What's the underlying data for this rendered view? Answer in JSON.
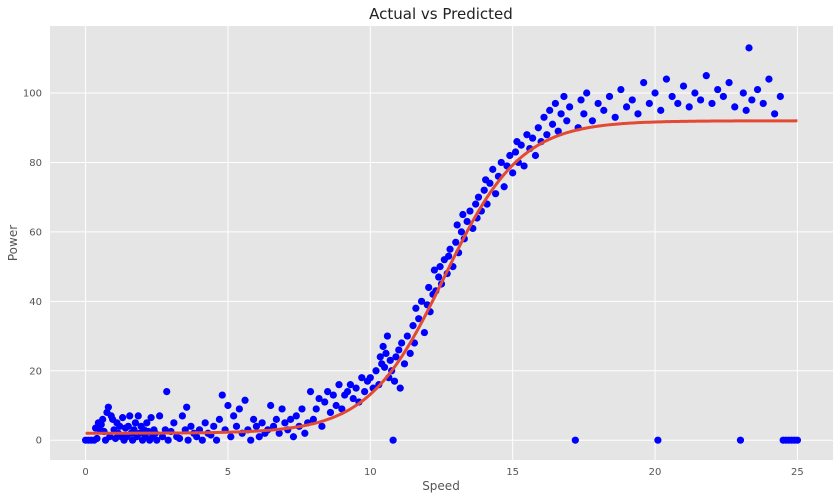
{
  "chart_data": {
    "type": "scatter",
    "title": "Actual vs Predicted",
    "xlabel": "Speed",
    "ylabel": "Power",
    "xlim": [
      -1.25,
      26.25
    ],
    "ylim": [
      -5.7,
      119.3
    ],
    "x_ticks": [
      0,
      5,
      10,
      15,
      20,
      25
    ],
    "y_ticks": [
      0,
      20,
      40,
      60,
      80,
      100
    ],
    "grid": true,
    "colors": {
      "background": "#e5e5e5",
      "grid": "#ffffff",
      "points": "#0000ff",
      "fit_line": "#e24a33"
    },
    "series": [
      {
        "kind": "scatter",
        "points": [
          [
            0.0,
            0
          ],
          [
            0.1,
            0
          ],
          [
            0.2,
            0
          ],
          [
            0.3,
            0
          ],
          [
            0.35,
            3.5
          ],
          [
            0.4,
            0.5
          ],
          [
            0.45,
            5
          ],
          [
            0.5,
            3
          ],
          [
            0.55,
            4.5
          ],
          [
            0.6,
            6
          ],
          [
            0.65,
            2.5
          ],
          [
            0.7,
            0
          ],
          [
            0.75,
            8
          ],
          [
            0.8,
            9.5
          ],
          [
            0.85,
            1
          ],
          [
            0.9,
            7
          ],
          [
            0.95,
            6
          ],
          [
            1.0,
            3
          ],
          [
            1.05,
            0.5
          ],
          [
            1.1,
            5
          ],
          [
            1.15,
            2
          ],
          [
            1.2,
            4
          ],
          [
            1.25,
            1
          ],
          [
            1.3,
            6.5
          ],
          [
            1.35,
            0
          ],
          [
            1.4,
            3.5
          ],
          [
            1.45,
            1
          ],
          [
            1.5,
            4
          ],
          [
            1.55,
            7
          ],
          [
            1.6,
            2
          ],
          [
            1.65,
            0
          ],
          [
            1.7,
            3
          ],
          [
            1.75,
            5
          ],
          [
            1.8,
            1
          ],
          [
            1.85,
            7
          ],
          [
            1.9,
            2
          ],
          [
            1.95,
            4
          ],
          [
            2.0,
            0
          ],
          [
            2.05,
            3
          ],
          [
            2.1,
            1
          ],
          [
            2.15,
            5
          ],
          [
            2.2,
            2.5
          ],
          [
            2.25,
            0
          ],
          [
            2.3,
            6.5
          ],
          [
            2.35,
            1
          ],
          [
            2.4,
            3
          ],
          [
            2.45,
            2
          ],
          [
            2.5,
            0
          ],
          [
            2.6,
            7
          ],
          [
            2.7,
            1
          ],
          [
            2.8,
            3
          ],
          [
            2.85,
            14
          ],
          [
            2.9,
            0
          ],
          [
            3.0,
            2.5
          ],
          [
            3.1,
            5
          ],
          [
            3.2,
            1
          ],
          [
            3.3,
            0.5
          ],
          [
            3.4,
            7
          ],
          [
            3.5,
            3
          ],
          [
            3.55,
            9.5
          ],
          [
            3.6,
            0
          ],
          [
            3.7,
            4
          ],
          [
            3.8,
            2
          ],
          [
            3.9,
            1
          ],
          [
            4.0,
            3
          ],
          [
            4.1,
            0
          ],
          [
            4.2,
            5
          ],
          [
            4.3,
            2
          ],
          [
            4.4,
            1.5
          ],
          [
            4.5,
            4
          ],
          [
            4.6,
            0
          ],
          [
            4.7,
            6
          ],
          [
            4.8,
            13
          ],
          [
            4.9,
            3
          ],
          [
            5.0,
            10
          ],
          [
            5.1,
            1
          ],
          [
            5.2,
            7
          ],
          [
            5.3,
            4
          ],
          [
            5.4,
            9
          ],
          [
            5.5,
            2
          ],
          [
            5.6,
            11.5
          ],
          [
            5.7,
            3
          ],
          [
            5.8,
            0
          ],
          [
            5.9,
            6
          ],
          [
            6.0,
            4
          ],
          [
            6.1,
            1
          ],
          [
            6.2,
            5
          ],
          [
            6.3,
            2
          ],
          [
            6.4,
            3
          ],
          [
            6.5,
            10
          ],
          [
            6.6,
            4
          ],
          [
            6.7,
            6
          ],
          [
            6.8,
            2
          ],
          [
            6.9,
            9
          ],
          [
            7.0,
            5
          ],
          [
            7.1,
            3
          ],
          [
            7.2,
            6
          ],
          [
            7.3,
            1
          ],
          [
            7.4,
            7
          ],
          [
            7.5,
            4
          ],
          [
            7.6,
            9
          ],
          [
            7.7,
            2
          ],
          [
            7.8,
            5
          ],
          [
            7.9,
            14
          ],
          [
            8.0,
            6
          ],
          [
            8.1,
            9
          ],
          [
            8.2,
            12
          ],
          [
            8.3,
            4
          ],
          [
            8.4,
            11
          ],
          [
            8.5,
            14
          ],
          [
            8.6,
            8
          ],
          [
            8.7,
            13
          ],
          [
            8.8,
            10
          ],
          [
            8.9,
            16
          ],
          [
            9.0,
            9
          ],
          [
            9.1,
            13
          ],
          [
            9.2,
            14
          ],
          [
            9.3,
            16
          ],
          [
            9.4,
            12
          ],
          [
            9.5,
            15
          ],
          [
            9.6,
            11
          ],
          [
            9.7,
            18
          ],
          [
            9.8,
            14
          ],
          [
            9.9,
            17
          ],
          [
            10.0,
            18
          ],
          [
            10.1,
            15
          ],
          [
            10.2,
            20
          ],
          [
            10.3,
            16
          ],
          [
            10.35,
            24
          ],
          [
            10.4,
            22
          ],
          [
            10.45,
            27
          ],
          [
            10.5,
            21
          ],
          [
            10.55,
            25
          ],
          [
            10.6,
            30
          ],
          [
            10.65,
            18
          ],
          [
            10.7,
            23
          ],
          [
            10.75,
            20
          ],
          [
            10.8,
            0
          ],
          [
            10.85,
            17
          ],
          [
            10.9,
            24
          ],
          [
            11.0,
            26
          ],
          [
            11.05,
            15
          ],
          [
            11.1,
            28
          ],
          [
            11.2,
            22
          ],
          [
            11.3,
            30
          ],
          [
            11.4,
            25
          ],
          [
            11.5,
            33
          ],
          [
            11.55,
            28
          ],
          [
            11.6,
            38
          ],
          [
            11.7,
            35
          ],
          [
            11.8,
            40
          ],
          [
            11.9,
            31
          ],
          [
            12.0,
            39
          ],
          [
            12.05,
            44
          ],
          [
            12.1,
            37
          ],
          [
            12.2,
            42
          ],
          [
            12.25,
            49
          ],
          [
            12.3,
            43
          ],
          [
            12.4,
            47
          ],
          [
            12.45,
            50
          ],
          [
            12.5,
            45
          ],
          [
            12.6,
            52
          ],
          [
            12.7,
            48
          ],
          [
            12.75,
            53
          ],
          [
            12.8,
            55
          ],
          [
            12.9,
            50
          ],
          [
            13.0,
            57
          ],
          [
            13.05,
            62
          ],
          [
            13.1,
            54
          ],
          [
            13.2,
            60
          ],
          [
            13.25,
            65
          ],
          [
            13.3,
            58
          ],
          [
            13.4,
            63
          ],
          [
            13.5,
            66
          ],
          [
            13.6,
            61
          ],
          [
            13.7,
            68
          ],
          [
            13.75,
            64
          ],
          [
            13.8,
            70
          ],
          [
            13.9,
            66
          ],
          [
            14.0,
            72
          ],
          [
            14.05,
            75
          ],
          [
            14.1,
            68
          ],
          [
            14.2,
            74
          ],
          [
            14.3,
            78
          ],
          [
            14.4,
            71
          ],
          [
            14.5,
            76
          ],
          [
            14.6,
            80
          ],
          [
            14.7,
            73
          ],
          [
            14.8,
            79
          ],
          [
            14.9,
            82
          ],
          [
            15.0,
            77
          ],
          [
            15.1,
            83
          ],
          [
            15.15,
            86
          ],
          [
            15.2,
            80
          ],
          [
            15.3,
            85
          ],
          [
            15.4,
            79
          ],
          [
            15.5,
            88
          ],
          [
            15.6,
            84
          ],
          [
            15.7,
            87
          ],
          [
            15.8,
            82
          ],
          [
            15.9,
            90
          ],
          [
            16.0,
            86
          ],
          [
            16.1,
            93
          ],
          [
            16.2,
            88
          ],
          [
            16.3,
            95
          ],
          [
            16.4,
            91
          ],
          [
            16.5,
            97
          ],
          [
            16.6,
            89
          ],
          [
            16.7,
            94
          ],
          [
            16.8,
            99
          ],
          [
            16.9,
            92
          ],
          [
            17.0,
            96
          ],
          [
            17.2,
            0
          ],
          [
            17.3,
            90
          ],
          [
            17.4,
            98
          ],
          [
            17.5,
            94
          ],
          [
            17.6,
            100
          ],
          [
            17.8,
            92
          ],
          [
            18.0,
            97
          ],
          [
            18.2,
            95
          ],
          [
            18.4,
            99
          ],
          [
            18.6,
            93
          ],
          [
            18.8,
            101
          ],
          [
            19.0,
            96
          ],
          [
            19.2,
            98
          ],
          [
            19.4,
            94
          ],
          [
            19.6,
            103
          ],
          [
            19.8,
            97
          ],
          [
            20.0,
            100
          ],
          [
            20.1,
            0
          ],
          [
            20.2,
            95
          ],
          [
            20.4,
            104
          ],
          [
            20.6,
            99
          ],
          [
            20.8,
            97
          ],
          [
            21.0,
            102
          ],
          [
            21.2,
            96
          ],
          [
            21.4,
            100
          ],
          [
            21.6,
            98
          ],
          [
            21.8,
            105
          ],
          [
            22.0,
            97
          ],
          [
            22.2,
            101
          ],
          [
            22.4,
            99
          ],
          [
            22.6,
            103
          ],
          [
            22.8,
            96
          ],
          [
            23.0,
            0
          ],
          [
            23.1,
            100
          ],
          [
            23.2,
            95
          ],
          [
            23.3,
            113
          ],
          [
            23.4,
            98
          ],
          [
            23.6,
            101
          ],
          [
            23.8,
            97
          ],
          [
            24.0,
            104
          ],
          [
            24.2,
            94
          ],
          [
            24.4,
            99
          ],
          [
            24.5,
            0
          ],
          [
            24.6,
            0
          ],
          [
            24.7,
            0
          ],
          [
            24.8,
            0
          ],
          [
            24.9,
            0
          ],
          [
            25.0,
            0
          ]
        ]
      },
      {
        "kind": "line",
        "model": "logistic",
        "L": 90,
        "k": 0.75,
        "x0": 12.6,
        "base": 2,
        "x_range": [
          0,
          25
        ]
      }
    ]
  }
}
